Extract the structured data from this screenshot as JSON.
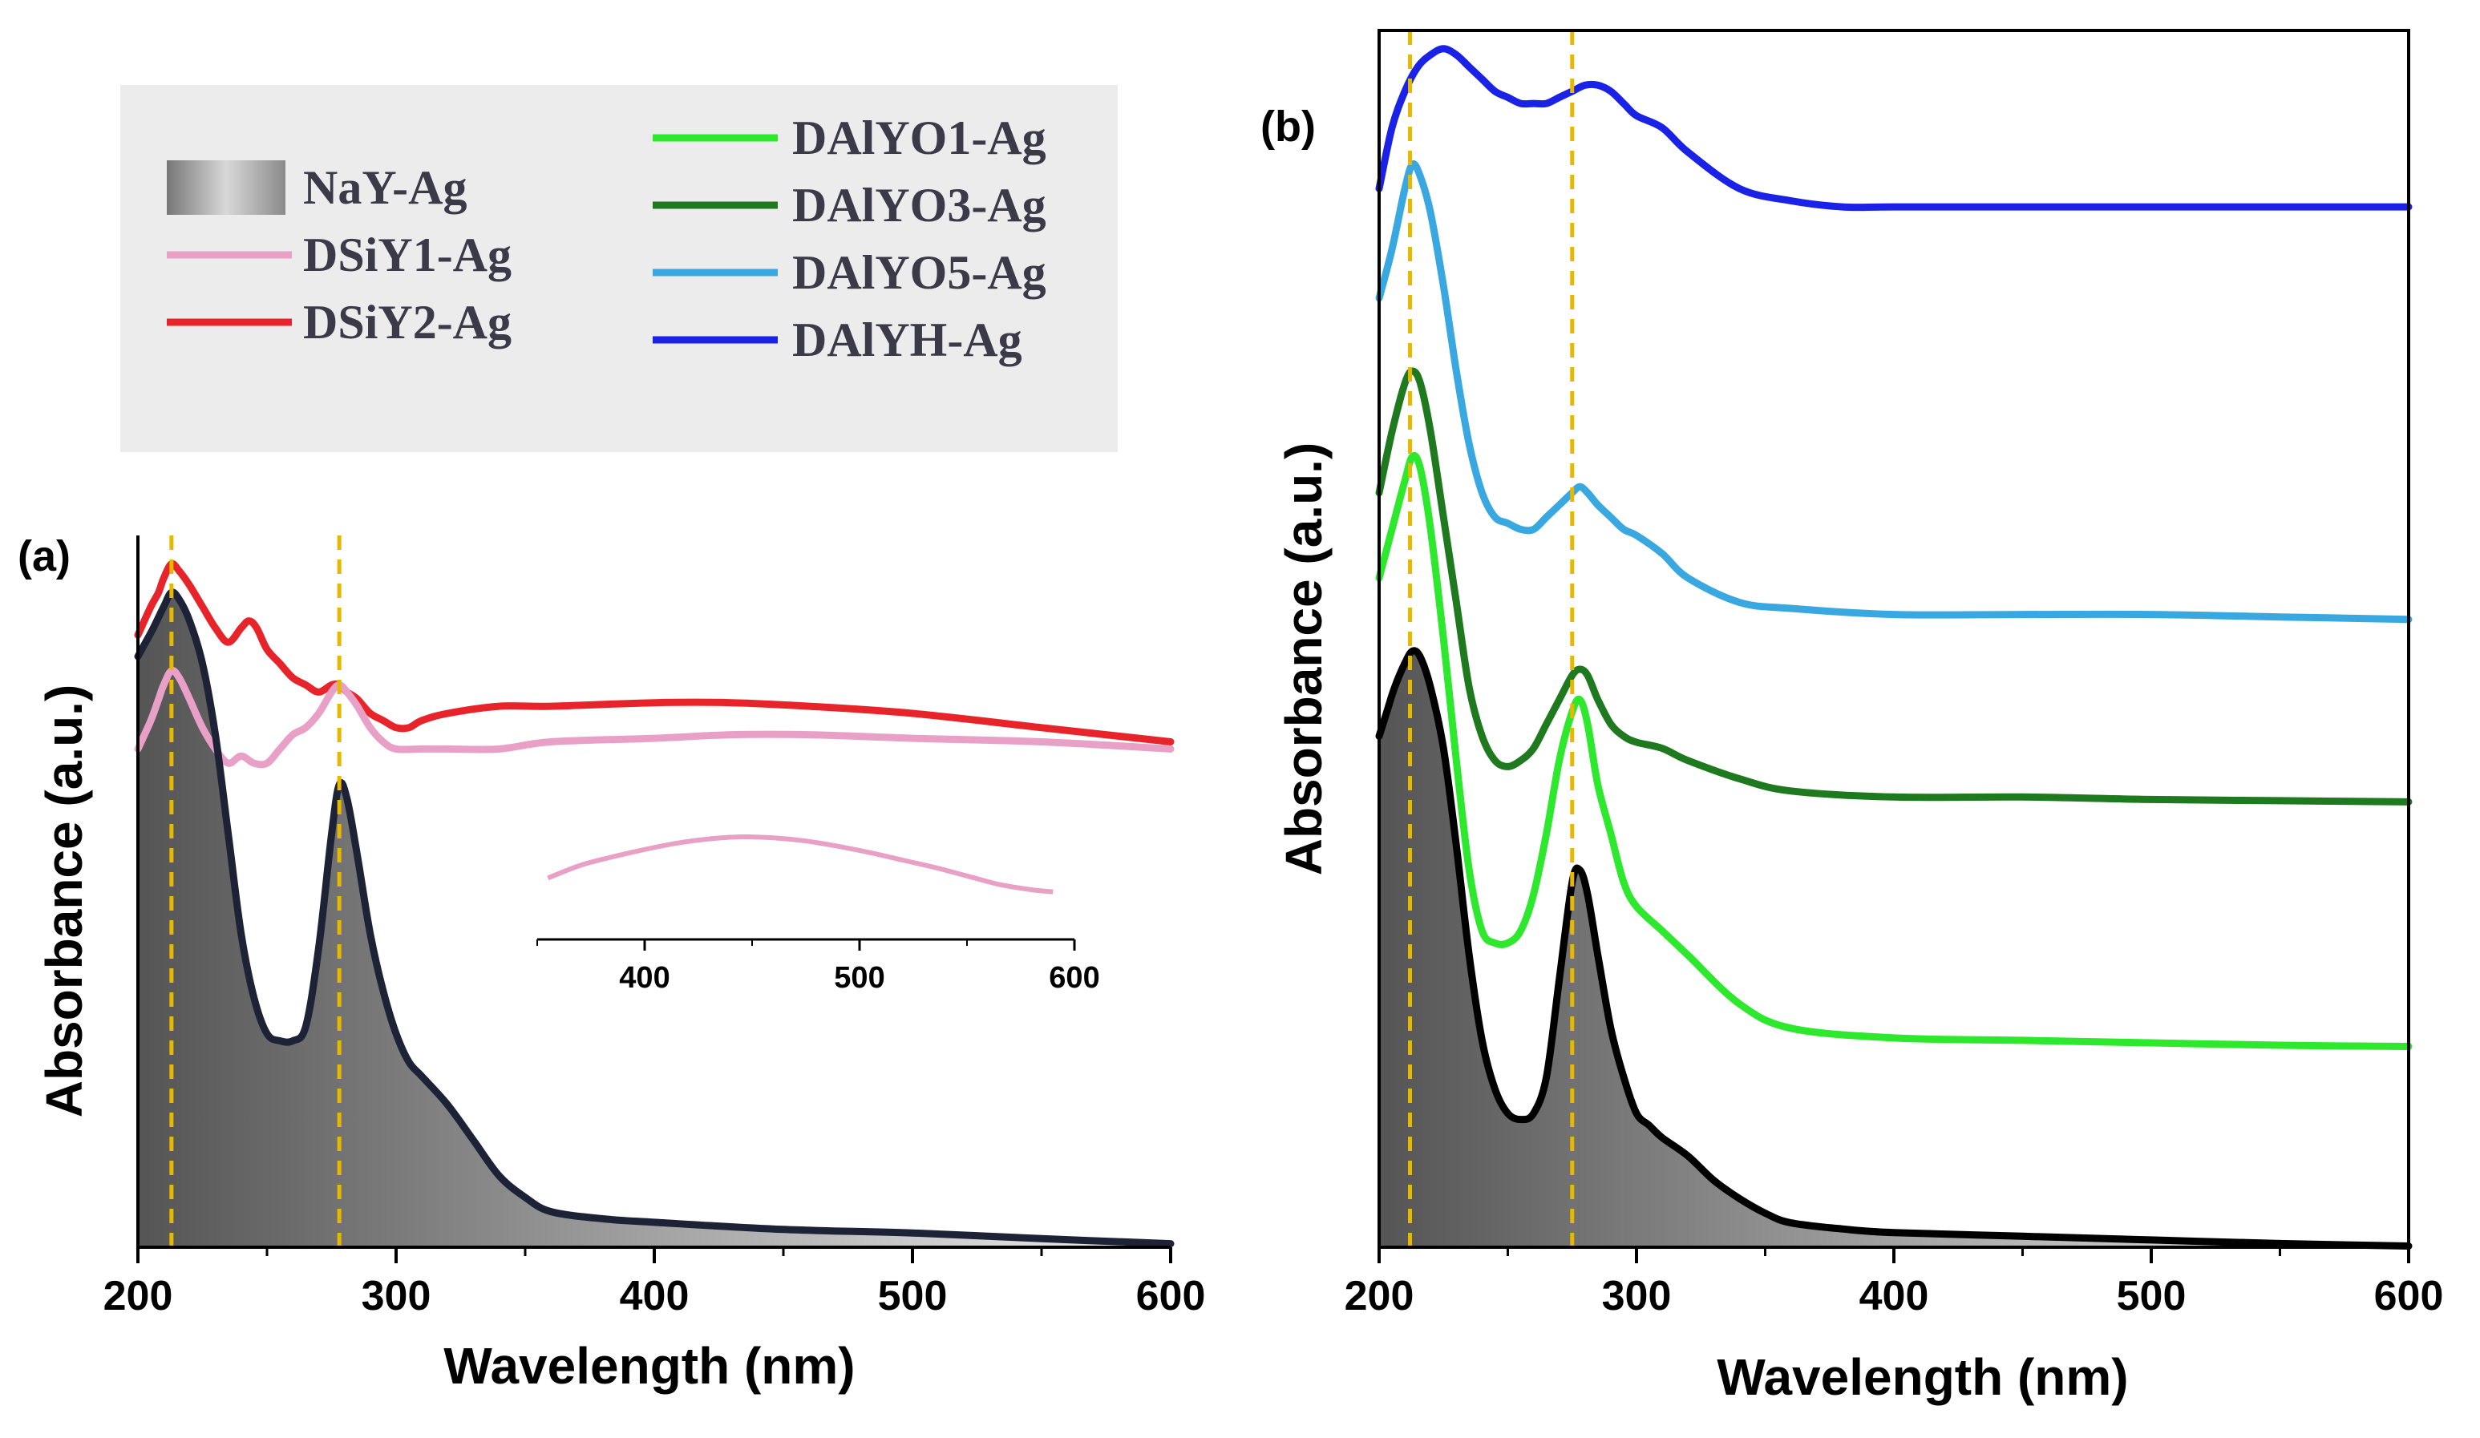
{
  "chart_data": [
    {
      "panel": "(a)",
      "type": "line",
      "xlabel": "Wavelength (nm)",
      "ylabel": "Absorbance (a.u.)",
      "xlim": [
        200,
        600
      ],
      "ylim": [
        0,
        1.0
      ],
      "xticks": [
        "200",
        "300",
        "400",
        "500",
        "600"
      ],
      "reference_lines_x": [
        213,
        278
      ],
      "series": [
        {
          "name": "DSiY2-Ag",
          "color": "#e8242b",
          "fill": false,
          "x": [
            200,
            205,
            208,
            210,
            213,
            216,
            220,
            225,
            230,
            235,
            240,
            243,
            246,
            250,
            255,
            260,
            265,
            270,
            275,
            278,
            281,
            285,
            290,
            295,
            300,
            305,
            310,
            320,
            340,
            360,
            400,
            430,
            460,
            500,
            550,
            600
          ],
          "y": [
            0.86,
            0.9,
            0.92,
            0.94,
            0.96,
            0.95,
            0.93,
            0.9,
            0.87,
            0.85,
            0.87,
            0.88,
            0.87,
            0.84,
            0.82,
            0.8,
            0.79,
            0.78,
            0.79,
            0.79,
            0.78,
            0.77,
            0.75,
            0.74,
            0.73,
            0.73,
            0.74,
            0.75,
            0.76,
            0.76,
            0.765,
            0.765,
            0.76,
            0.75,
            0.73,
            0.71
          ]
        },
        {
          "name": "DSiY1-Ag",
          "color": "#e9a0c6",
          "fill": false,
          "x": [
            200,
            205,
            208,
            210,
            213,
            216,
            220,
            225,
            230,
            235,
            240,
            245,
            250,
            255,
            260,
            265,
            270,
            275,
            278,
            281,
            285,
            290,
            295,
            300,
            310,
            320,
            340,
            360,
            400,
            430,
            460,
            500,
            550,
            600
          ],
          "y": [
            0.7,
            0.74,
            0.77,
            0.79,
            0.81,
            0.8,
            0.77,
            0.73,
            0.7,
            0.68,
            0.69,
            0.68,
            0.68,
            0.7,
            0.72,
            0.73,
            0.75,
            0.78,
            0.79,
            0.78,
            0.76,
            0.73,
            0.71,
            0.7,
            0.7,
            0.7,
            0.7,
            0.71,
            0.715,
            0.72,
            0.72,
            0.715,
            0.71,
            0.7
          ]
        },
        {
          "name": "NaY-Ag",
          "color": "#1e2236",
          "fill": true,
          "x": [
            200,
            203,
            206,
            210,
            213,
            216,
            220,
            225,
            230,
            235,
            240,
            245,
            250,
            255,
            260,
            265,
            270,
            275,
            278,
            281,
            285,
            290,
            295,
            300,
            305,
            310,
            320,
            330,
            340,
            350,
            360,
            380,
            400,
            450,
            500,
            550,
            600
          ],
          "y": [
            0.83,
            0.85,
            0.87,
            0.9,
            0.92,
            0.91,
            0.88,
            0.82,
            0.72,
            0.58,
            0.44,
            0.35,
            0.3,
            0.29,
            0.29,
            0.31,
            0.42,
            0.58,
            0.65,
            0.63,
            0.55,
            0.44,
            0.36,
            0.3,
            0.26,
            0.24,
            0.2,
            0.15,
            0.1,
            0.07,
            0.05,
            0.04,
            0.035,
            0.025,
            0.02,
            0.012,
            0.005
          ]
        }
      ],
      "inset": {
        "series_name": "DSiY1-Ag",
        "xlim": [
          350,
          600
        ],
        "xticks": [
          "400",
          "500",
          "600"
        ],
        "x": [
          355,
          370,
          385,
          400,
          415,
          430,
          445,
          460,
          475,
          490,
          505,
          520,
          535,
          550,
          565,
          580,
          590
        ],
        "y": [
          0.58,
          0.7,
          0.78,
          0.85,
          0.91,
          0.95,
          0.97,
          0.96,
          0.93,
          0.88,
          0.82,
          0.75,
          0.68,
          0.6,
          0.52,
          0.47,
          0.45
        ]
      }
    },
    {
      "panel": "(b)",
      "type": "line",
      "xlabel": "Wavelength (nm)",
      "ylabel": "Absorbance (a.u.)",
      "xlim": [
        200,
        600
      ],
      "ylim": [
        0,
        1.0
      ],
      "xticks": [
        "200",
        "300",
        "400",
        "500",
        "600"
      ],
      "reference_lines_x": [
        212,
        275
      ],
      "series": [
        {
          "name": "DAlYH-Ag",
          "color": "#1a22e6",
          "fill": false,
          "x": [
            200,
            205,
            210,
            215,
            220,
            225,
            230,
            235,
            240,
            245,
            250,
            255,
            260,
            265,
            270,
            275,
            280,
            285,
            290,
            295,
            300,
            310,
            320,
            340,
            360,
            380,
            400,
            450,
            500,
            550,
            600
          ],
          "y": [
            0.87,
            0.92,
            0.95,
            0.97,
            0.98,
            0.985,
            0.98,
            0.97,
            0.96,
            0.95,
            0.945,
            0.94,
            0.94,
            0.94,
            0.945,
            0.95,
            0.955,
            0.955,
            0.95,
            0.94,
            0.93,
            0.92,
            0.9,
            0.87,
            0.86,
            0.855,
            0.855,
            0.855,
            0.855,
            0.855,
            0.855
          ]
        },
        {
          "name": "DAlYO5-Ag",
          "color": "#3aa8e0",
          "fill": false,
          "x": [
            200,
            205,
            210,
            213,
            216,
            220,
            225,
            230,
            235,
            240,
            245,
            250,
            255,
            260,
            265,
            270,
            275,
            278,
            281,
            285,
            290,
            295,
            300,
            310,
            320,
            340,
            360,
            400,
            450,
            500,
            550,
            600
          ],
          "y": [
            0.78,
            0.82,
            0.87,
            0.89,
            0.88,
            0.85,
            0.79,
            0.72,
            0.66,
            0.62,
            0.6,
            0.595,
            0.59,
            0.59,
            0.6,
            0.61,
            0.62,
            0.625,
            0.62,
            0.61,
            0.6,
            0.59,
            0.585,
            0.57,
            0.55,
            0.53,
            0.525,
            0.52,
            0.52,
            0.52,
            0.518,
            0.516
          ]
        },
        {
          "name": "DAlYO3-Ag",
          "color": "#1f7a1f",
          "fill": false,
          "x": [
            200,
            205,
            210,
            213,
            216,
            220,
            225,
            230,
            235,
            240,
            245,
            250,
            255,
            260,
            265,
            270,
            275,
            278,
            281,
            285,
            290,
            295,
            300,
            310,
            320,
            340,
            360,
            400,
            450,
            500,
            550,
            600
          ],
          "y": [
            0.62,
            0.67,
            0.71,
            0.72,
            0.71,
            0.67,
            0.6,
            0.53,
            0.46,
            0.42,
            0.4,
            0.395,
            0.4,
            0.41,
            0.43,
            0.45,
            0.47,
            0.475,
            0.47,
            0.45,
            0.43,
            0.42,
            0.415,
            0.41,
            0.4,
            0.385,
            0.375,
            0.37,
            0.37,
            0.368,
            0.367,
            0.366
          ]
        },
        {
          "name": "DAlYO1-Ag",
          "color": "#2ee82e",
          "fill": false,
          "x": [
            200,
            205,
            210,
            213,
            216,
            220,
            225,
            230,
            235,
            240,
            245,
            250,
            255,
            260,
            265,
            270,
            275,
            278,
            281,
            285,
            290,
            295,
            300,
            310,
            320,
            340,
            360,
            400,
            450,
            500,
            550,
            600
          ],
          "y": [
            0.55,
            0.59,
            0.63,
            0.65,
            0.64,
            0.59,
            0.5,
            0.4,
            0.31,
            0.26,
            0.25,
            0.25,
            0.26,
            0.29,
            0.34,
            0.4,
            0.44,
            0.45,
            0.43,
            0.38,
            0.34,
            0.3,
            0.28,
            0.26,
            0.24,
            0.2,
            0.18,
            0.172,
            0.17,
            0.168,
            0.166,
            0.165
          ]
        },
        {
          "name": "NaY-Ag",
          "color": "#000000",
          "fill": true,
          "x": [
            200,
            203,
            206,
            210,
            213,
            216,
            220,
            225,
            230,
            235,
            240,
            245,
            250,
            255,
            260,
            265,
            270,
            275,
            278,
            281,
            285,
            290,
            295,
            300,
            305,
            310,
            320,
            330,
            340,
            350,
            360,
            380,
            400,
            450,
            500,
            550,
            600
          ],
          "y": [
            0.42,
            0.44,
            0.46,
            0.48,
            0.49,
            0.485,
            0.46,
            0.41,
            0.33,
            0.24,
            0.17,
            0.13,
            0.11,
            0.105,
            0.11,
            0.14,
            0.22,
            0.3,
            0.31,
            0.29,
            0.24,
            0.18,
            0.14,
            0.11,
            0.1,
            0.09,
            0.075,
            0.055,
            0.04,
            0.028,
            0.02,
            0.015,
            0.012,
            0.009,
            0.006,
            0.003,
            0.001
          ]
        }
      ]
    }
  ],
  "legend": {
    "items": [
      {
        "name": "NaY-Ag",
        "swatch": "gradient"
      },
      {
        "name": "DSiY1-Ag",
        "color": "#e9a0c6"
      },
      {
        "name": "DSiY2-Ag",
        "color": "#e8242b"
      },
      {
        "name": "DAlYO1-Ag",
        "color": "#2ee82e"
      },
      {
        "name": "DAlYO3-Ag",
        "color": "#1f7a1f"
      },
      {
        "name": "DAlYO5-Ag",
        "color": "#3aa8e0"
      },
      {
        "name": "DAlYH-Ag",
        "color": "#1a22e6"
      }
    ]
  },
  "reference_line_color": "#e6b800"
}
